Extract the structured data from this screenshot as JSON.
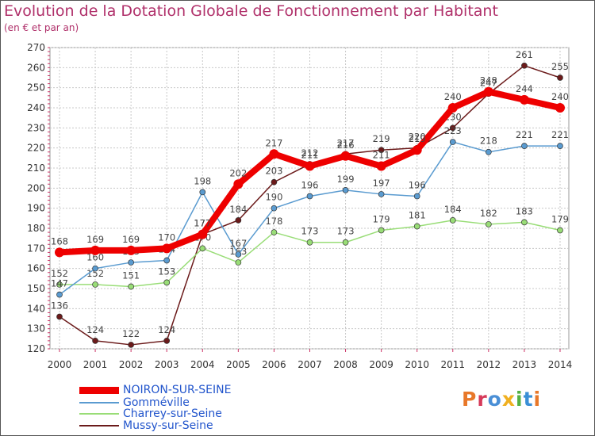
{
  "header": {
    "title": "Evolution de la Dotation Globale de Fonctionnement par Habitant",
    "subtitle": "(en € et par an)"
  },
  "brand": {
    "name": "Proxiti",
    "colors": [
      "#e8782a",
      "#d63a5a",
      "#4a8fd6",
      "#f0b020",
      "#55b043",
      "#3a8fd6",
      "#e8782a"
    ]
  },
  "chart_data": {
    "type": "line",
    "title": "Evolution de la Dotation Globale de Fonctionnement par Habitant",
    "subtitle": "(en € et par an)",
    "xlabel": "",
    "ylabel": "",
    "x": [
      "2000",
      "2001",
      "2002",
      "2003",
      "2004",
      "2005",
      "2006",
      "2007",
      "2008",
      "2009",
      "2010",
      "2011",
      "2012",
      "2013",
      "2014"
    ],
    "ylim": [
      120,
      270
    ],
    "yticks": [
      120,
      130,
      140,
      150,
      160,
      170,
      180,
      190,
      200,
      210,
      220,
      230,
      240,
      250,
      260,
      270
    ],
    "grid": true,
    "legend_position": "bottom-left",
    "series": [
      {
        "name": "Mussy-sur-Seine",
        "color": "#6b1a1a",
        "values": [
          136,
          124,
          122,
          124,
          177,
          184,
          203,
          212,
          217,
          219,
          220,
          230,
          247,
          261,
          255
        ]
      },
      {
        "name": "Charrey-sur-Seine",
        "color": "#99dd77",
        "values": [
          152,
          152,
          151,
          153,
          170,
          163,
          178,
          173,
          173,
          179,
          181,
          184,
          182,
          183,
          179
        ]
      },
      {
        "name": "Gomméville",
        "color": "#5a9bd0",
        "values": [
          147,
          160,
          163,
          164,
          198,
          167,
          190,
          196,
          199,
          197,
          196,
          223,
          218,
          221,
          221
        ]
      },
      {
        "name": "NOIRON-SUR-SEINE",
        "color": "#ee0000",
        "values": [
          168,
          169,
          169,
          170,
          177,
          202,
          217,
          211,
          216,
          211,
          219,
          240,
          248,
          244,
          240
        ]
      }
    ],
    "legend": [
      "NOIRON-SUR-SEINE",
      "Gomméville",
      "Charrey-sur-Seine",
      "Mussy-sur-Seine"
    ]
  }
}
